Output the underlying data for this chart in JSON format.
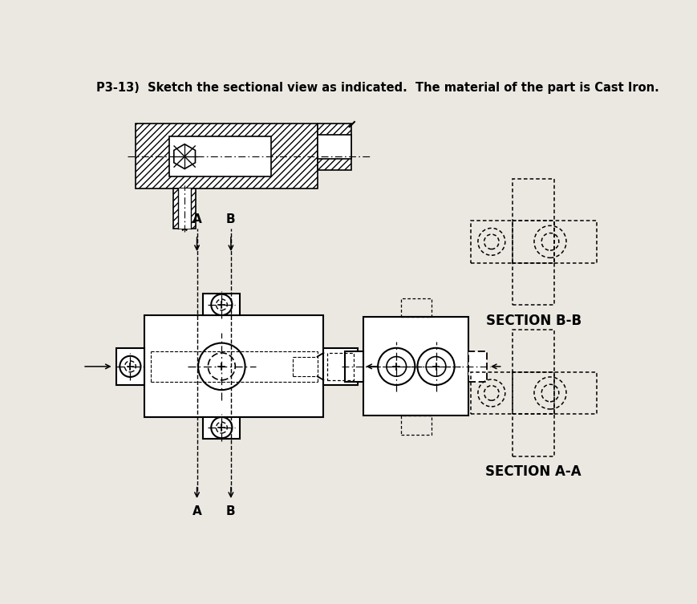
{
  "title": "P3-13)  Sketch the sectional view as indicated.  The material of the part is Cast Iron.",
  "title_fontsize": 10.5,
  "title_weight": "bold",
  "bg_color": "#ebe8e2",
  "section_bb_label": "SECTION B-B",
  "section_aa_label": "SECTION A-A",
  "label_fontsize": 12
}
